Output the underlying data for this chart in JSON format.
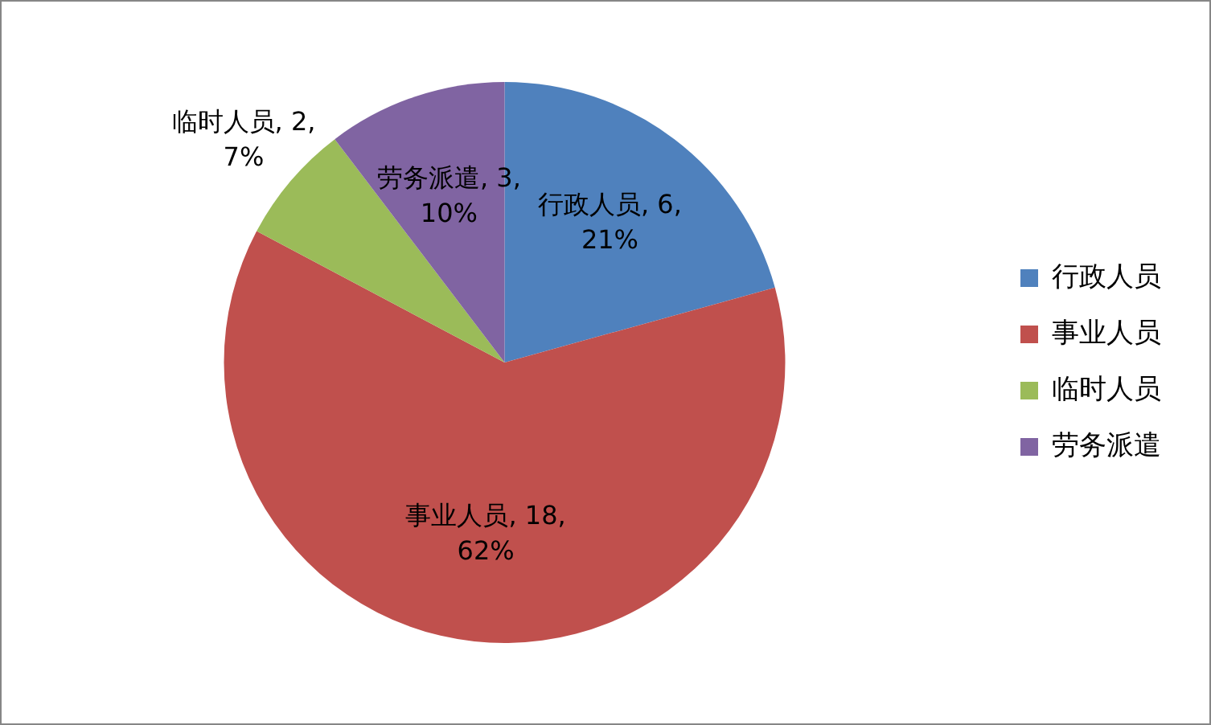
{
  "chart_data": {
    "type": "pie",
    "categories": [
      "行政人员",
      "事业人员",
      "临时人员",
      "劳务派遣"
    ],
    "values": [
      6,
      18,
      2,
      3
    ],
    "colors": [
      "#4f81bd",
      "#c0504d",
      "#9bbb59",
      "#8064a2"
    ],
    "value_labels": [
      "行政人员, 6, 21%",
      "事业人员, 18, 62%",
      "临时人员, 2, 7%",
      "劳务派遣, 3, 10%"
    ],
    "legend": "right"
  }
}
